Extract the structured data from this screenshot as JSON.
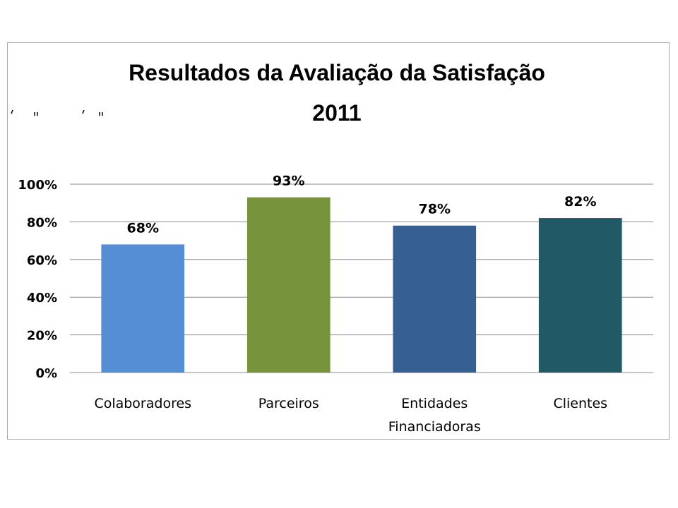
{
  "chart_data": {
    "type": "bar",
    "title_lines": [
      "Resultados da Avaliação da Satisfação",
      "2011"
    ],
    "categories": [
      [
        "Colaboradores"
      ],
      [
        "Parceiros"
      ],
      [
        "Entidades",
        "Financiadoras"
      ],
      [
        "Clientes"
      ]
    ],
    "values": [
      68,
      93,
      78,
      82
    ],
    "data_labels": [
      "68%",
      "93%",
      "78%",
      "82%"
    ],
    "colors": [
      "#558ED5",
      "#77933C",
      "#376092",
      "#215967"
    ],
    "ylim": [
      0,
      100
    ],
    "yticks": [
      0,
      20,
      40,
      60,
      80,
      100
    ],
    "ytick_labels": [
      "0%",
      "20%",
      "40%",
      "60%",
      "80%",
      "100%"
    ],
    "grid": true,
    "xlabel": "",
    "ylabel": "",
    "legend": "none"
  }
}
